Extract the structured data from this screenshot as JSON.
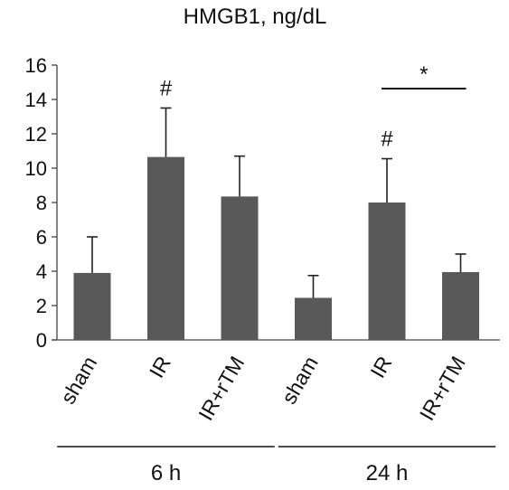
{
  "chart_data": {
    "type": "bar",
    "title": "HMGB1, ng/dL",
    "ylim": [
      0,
      16
    ],
    "yticks": [
      "0",
      "2",
      "4",
      "6",
      "8",
      "10",
      "12",
      "14",
      "16"
    ],
    "grid": false,
    "bar_color": "#595959",
    "categories": [
      "sham",
      "IR",
      "IR+rTM",
      "sham",
      "IR",
      "IR+rTM"
    ],
    "values": [
      3.9,
      10.65,
      8.35,
      2.45,
      8.0,
      3.95
    ],
    "error_plus": [
      2.1,
      2.85,
      2.35,
      1.3,
      2.55,
      1.05
    ],
    "bar_annotations": [
      "",
      "#",
      "",
      "",
      "#",
      ""
    ],
    "groups": [
      {
        "label": "6 h",
        "categories": [
          "sham",
          "IR",
          "IR+rTM"
        ]
      },
      {
        "label": "24 h",
        "categories": [
          "sham",
          "IR",
          "IR+rTM"
        ]
      }
    ],
    "comparisons": [
      {
        "between": [
          "IR",
          "IR+rTM"
        ],
        "group": "24 h",
        "label": "*"
      }
    ]
  }
}
